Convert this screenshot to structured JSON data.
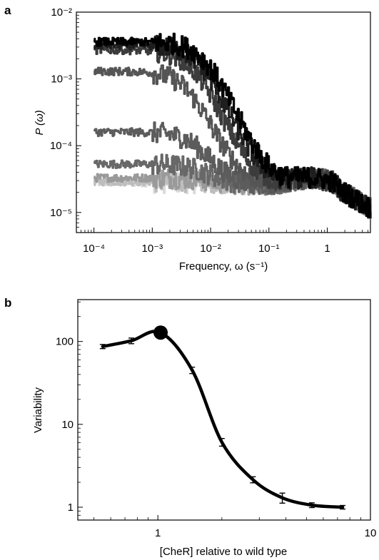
{
  "chart_data": [
    {
      "panel": "a",
      "type": "line",
      "title": "",
      "xlabel": "Frequency, ω (s⁻¹)",
      "ylabel": "P (ω)",
      "xscale": "log",
      "yscale": "log",
      "xlim": [
        5e-05,
        5.5
      ],
      "ylim": [
        5e-06,
        0.01
      ],
      "x_ticks": [
        0.0001,
        0.001,
        0.01,
        0.1,
        1
      ],
      "x_tick_labels": [
        "10⁻⁴",
        "10⁻³",
        "10⁻²",
        "10⁻¹",
        "1"
      ],
      "y_ticks": [
        1e-05,
        0.0001,
        0.001,
        0.01
      ],
      "y_tick_labels": [
        "10⁻⁵",
        "10⁻⁴",
        "10⁻³",
        "10⁻²"
      ],
      "grid": false,
      "legend": "none",
      "series": [
        {
          "color": "#000000",
          "plateau": 0.0036,
          "x_corner": 0.008
        },
        {
          "color": "#1e1e1e",
          "plateau": 0.0032,
          "x_corner": 0.0065
        },
        {
          "color": "#3c3c3c",
          "plateau": 0.0027,
          "x_corner": 0.005
        },
        {
          "color": "#555555",
          "plateau": 0.0013,
          "x_corner": 0.004
        },
        {
          "color": "#5c5c5c",
          "plateau": 0.00016,
          "x_corner": 0.006
        },
        {
          "color": "#686868",
          "plateau": 5.3e-05,
          "x_corner": 0.008
        },
        {
          "color": "#9a9a9a",
          "plateau": 3.3e-05,
          "x_corner": 0.01
        },
        {
          "color": "#bdbdbd",
          "plateau": 2.9e-05,
          "x_corner": 0.02
        },
        {
          "color": "#dadada",
          "plateau": 2.8e-05,
          "x_corner": 0.03
        }
      ]
    },
    {
      "panel": "b",
      "type": "line",
      "title": "",
      "xlabel": "[CheR] relative to wild type",
      "ylabel": "Variability",
      "xscale": "log",
      "yscale": "log",
      "xlim": [
        0.42,
        10
      ],
      "ylim": [
        0.7,
        320
      ],
      "x_ticks": [
        1,
        10
      ],
      "x_tick_labels": [
        "1",
        "10"
      ],
      "y_ticks": [
        1,
        10,
        100
      ],
      "y_tick_labels": [
        "1",
        "10",
        "100"
      ],
      "grid": false,
      "legend": "none",
      "x": [
        0.55,
        0.75,
        1.03,
        1.45,
        2.0,
        2.8,
        3.85,
        5.3,
        7.4
      ],
      "y": [
        87,
        102,
        128,
        45,
        6.1,
        2.15,
        1.3,
        1.06,
        1.0
      ],
      "err": [
        5,
        8,
        0,
        4,
        0.65,
        0.18,
        0.18,
        0.07,
        0.05
      ],
      "highlighted_point": {
        "x": 1.03,
        "y": 128
      }
    }
  ],
  "panel_labels": {
    "a": "a",
    "b": "b"
  }
}
